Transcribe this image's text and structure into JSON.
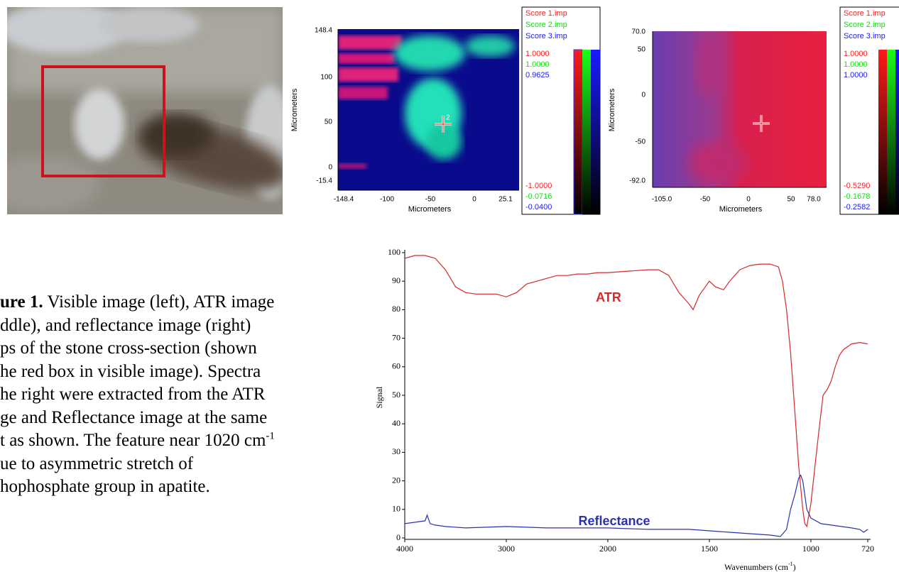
{
  "atr_map": {
    "yticks": [
      "148.4",
      "100",
      "50",
      "0",
      "-15.4"
    ],
    "xticks": [
      "-148.4",
      "-100",
      "-50",
      "0",
      "25.1"
    ],
    "x_label": "Micrometers",
    "y_label": "Micrometers",
    "legend": [
      {
        "name": "Score 1.imp",
        "color": "#ff2020",
        "max": "1.0000",
        "min": "-1.0000"
      },
      {
        "name": "Score 2.imp",
        "color": "#10e010",
        "max": "1.0000",
        "min": "-0.0716"
      },
      {
        "name": "Score 3.imp",
        "color": "#2020ff",
        "max": "0.9625",
        "min": "-0.0400"
      }
    ]
  },
  "reflectance_map": {
    "yticks": [
      "70.0",
      "50",
      "0",
      "-50",
      "-92.0"
    ],
    "xticks": [
      "-105.0",
      "-50",
      "0",
      "50",
      "78.0"
    ],
    "x_label": "Micrometers",
    "y_label": "Micrometers",
    "legend": [
      {
        "name": "Score 1.imp",
        "color": "#ff2020",
        "max": "1.0000",
        "min": "-0.5290"
      },
      {
        "name": "Score 2.imp",
        "color": "#10e010",
        "max": "1.0000",
        "min": "-0.1678"
      },
      {
        "name": "Score 3.imp",
        "color": "#2020ff",
        "max": "1.0000",
        "min": "-0.2582"
      }
    ]
  },
  "caption": {
    "label": "ure 1.",
    "lines": [
      " Visible image (left), ATR image",
      "ddle), and reflectance image (right)",
      "ps of the stone cross-section (shown",
      "he red box in visible image). Spectra",
      "he right were extracted from the ATR",
      "ge and Reflectance image at the same",
      "t as shown. The feature near 1020 cm",
      "ue to asymmetric stretch of",
      "hophosphate group in apatite."
    ],
    "sup": "-1"
  },
  "chart_data": {
    "type": "line",
    "x_label": "Wavenumbers (cm",
    "x_label_sup": "-1",
    "x_label_end": ")",
    "y_label": "Signal",
    "xlim": [
      4000,
      720
    ],
    "x_break": 2000,
    "xticks": [
      4000,
      3000,
      2000,
      1500,
      1000,
      720
    ],
    "ylim": [
      0,
      100
    ],
    "yticks": [
      0,
      10,
      20,
      30,
      40,
      50,
      60,
      70,
      80,
      90,
      100
    ],
    "grid": false,
    "series": [
      {
        "name": "ATR",
        "color": "#d42a2a",
        "x": [
          4000,
          3900,
          3800,
          3700,
          3600,
          3500,
          3400,
          3300,
          3200,
          3100,
          3000,
          2900,
          2800,
          2700,
          2600,
          2500,
          2400,
          2300,
          2200,
          2100,
          2000,
          1900,
          1800,
          1750,
          1700,
          1650,
          1600,
          1580,
          1550,
          1500,
          1470,
          1430,
          1400,
          1350,
          1300,
          1250,
          1200,
          1160,
          1140,
          1120,
          1100,
          1080,
          1060,
          1040,
          1030,
          1020,
          1000,
          980,
          960,
          940,
          920,
          900,
          880,
          860,
          840,
          800,
          760,
          720
        ],
        "values": [
          98,
          99,
          99,
          98,
          94,
          88,
          86,
          85.5,
          85.5,
          85.5,
          84.5,
          86,
          89,
          90,
          91,
          92,
          92,
          92.5,
          92.5,
          93,
          93,
          93.5,
          94,
          94,
          92,
          86,
          82,
          80,
          85,
          90,
          88,
          87,
          90,
          94,
          95.5,
          96,
          96,
          95,
          90,
          80,
          65,
          45,
          25,
          10,
          5,
          4,
          12,
          25,
          38,
          50,
          52,
          55,
          60,
          64,
          66,
          68,
          68.5,
          68
        ]
      },
      {
        "name": "Reflectance",
        "color": "#2a32b0",
        "x": [
          4000,
          3900,
          3800,
          3780,
          3750,
          3700,
          3600,
          3400,
          3000,
          2600,
          2000,
          1800,
          1600,
          1400,
          1300,
          1200,
          1150,
          1120,
          1100,
          1080,
          1070,
          1060,
          1050,
          1040,
          1030,
          1020,
          1000,
          950,
          900,
          850,
          800,
          760,
          740,
          720
        ],
        "values": [
          5,
          5.5,
          6,
          8,
          5,
          4.5,
          4,
          3.5,
          4,
          3.5,
          3.5,
          3,
          3,
          2,
          1.5,
          1,
          0.5,
          3,
          10,
          15,
          18,
          21,
          22,
          20,
          15,
          10,
          7,
          5,
          4.5,
          4,
          3.5,
          3,
          2,
          3
        ]
      }
    ]
  }
}
